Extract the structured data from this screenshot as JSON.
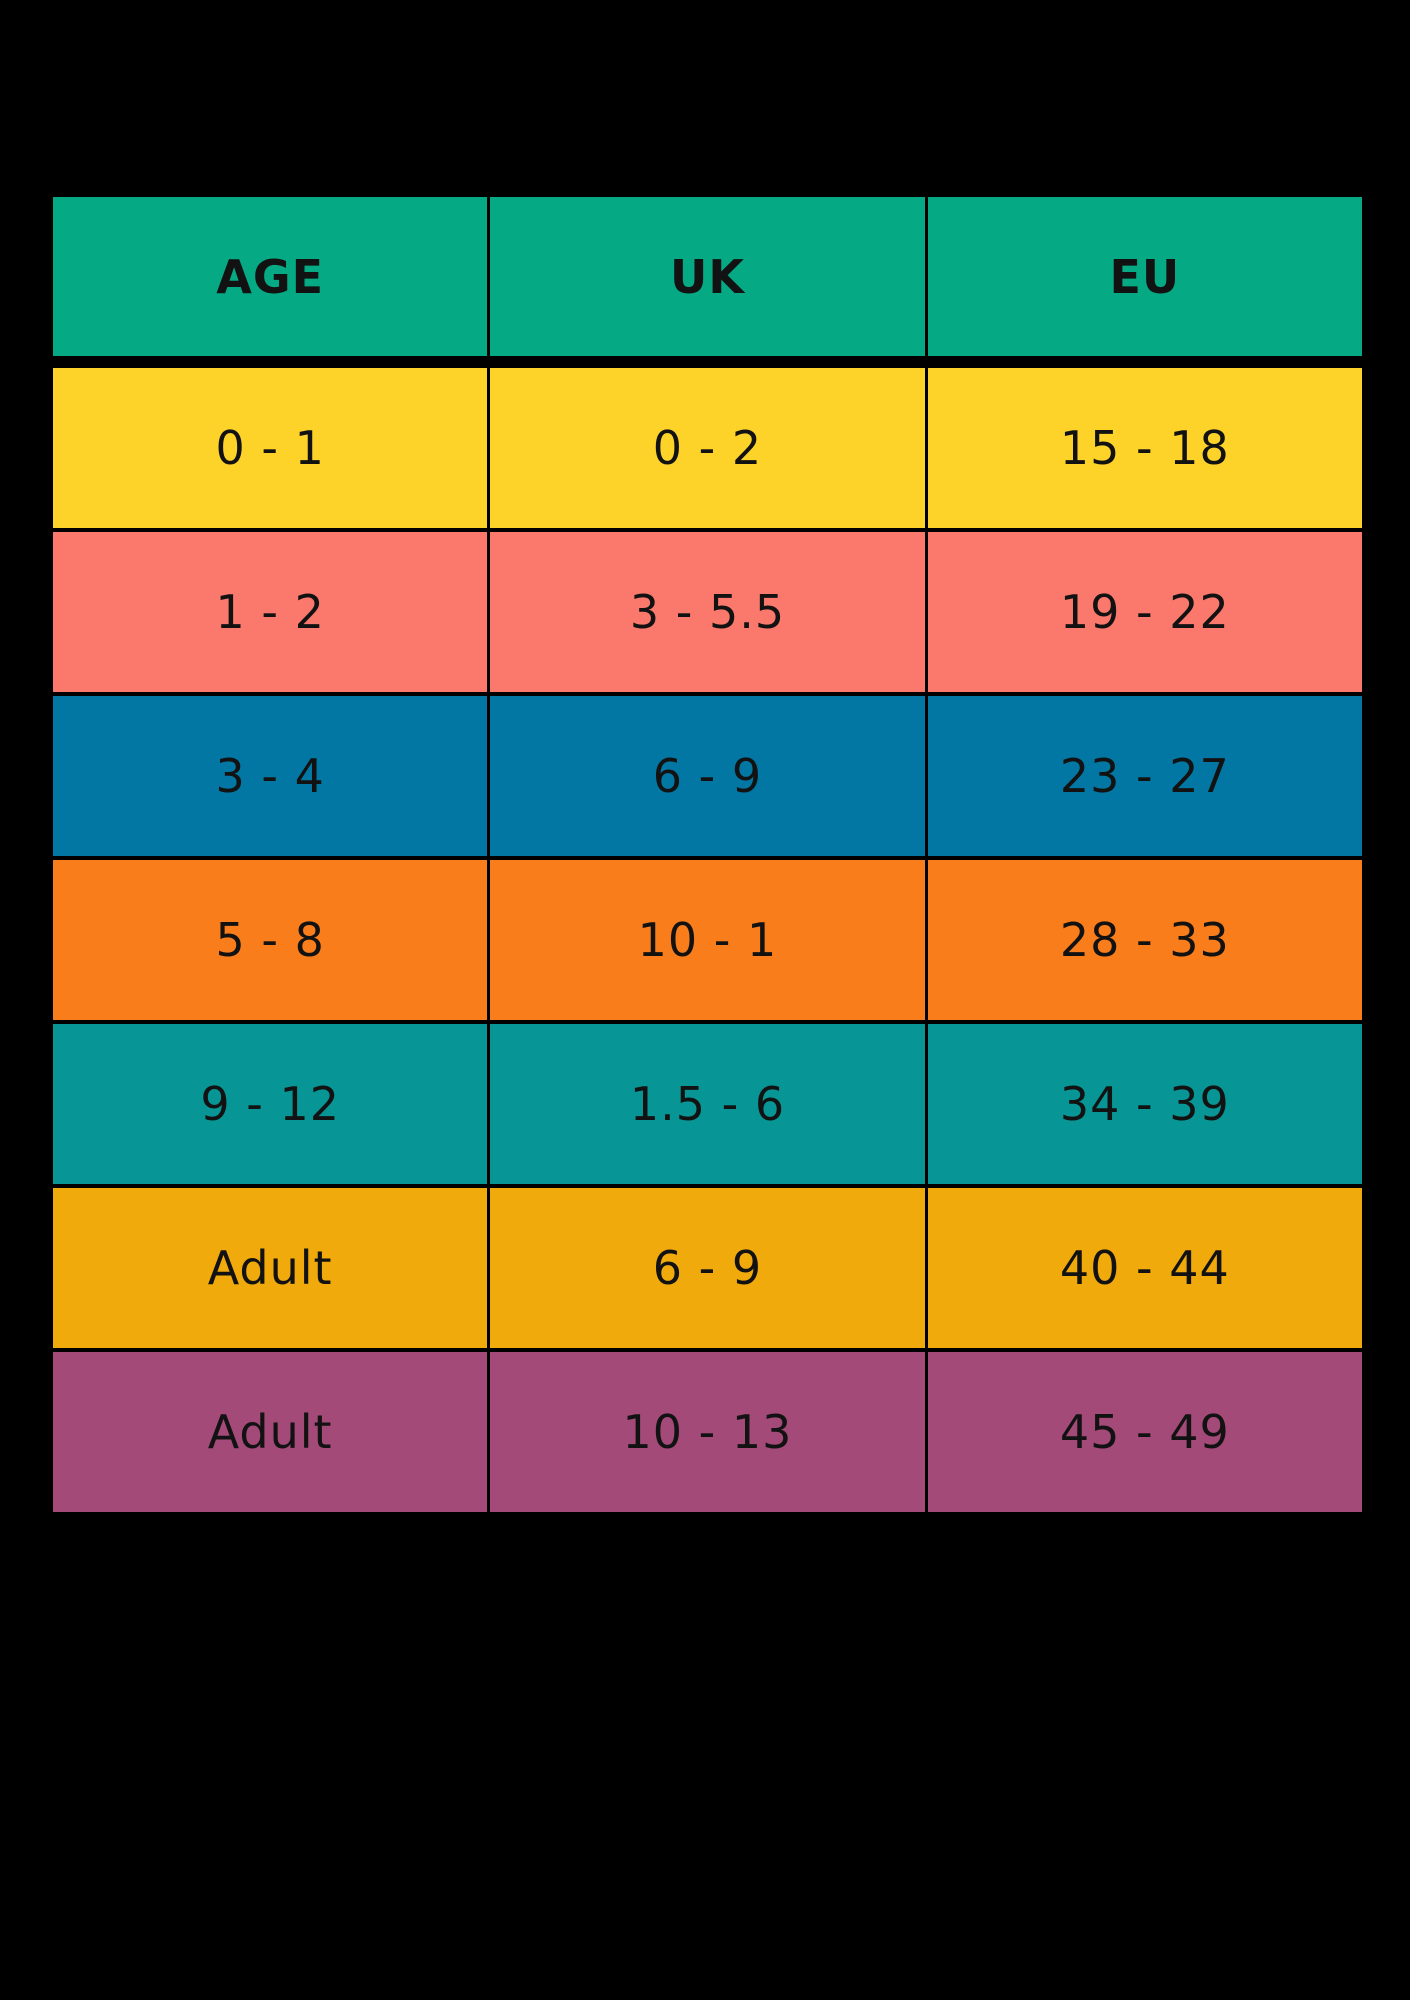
{
  "page": {
    "background": "#000000",
    "text_color": "#121212"
  },
  "table": {
    "header_color": "#05A983",
    "columns": [
      "AGE",
      "UK",
      "EU"
    ],
    "rows": [
      {
        "age": "0 - 1",
        "uk": "0 - 2",
        "eu": "15 - 18",
        "color": "#FDD32A"
      },
      {
        "age": "1 - 2",
        "uk": "3 - 5.5",
        "eu": "19 - 22",
        "color": "#FA796C"
      },
      {
        "age": "3 - 4",
        "uk": "6 - 9",
        "eu": "23 - 27",
        "color": "#0377A3"
      },
      {
        "age": "5 - 8",
        "uk": "10 - 1",
        "eu": "28 - 33",
        "color": "#FA7D1B"
      },
      {
        "age": "9 - 12",
        "uk": "1.5 - 6",
        "eu": "34 - 39",
        "color": "#079695"
      },
      {
        "age": "Adult",
        "uk": "6 - 9",
        "eu": "40 - 44",
        "color": "#F0AA0B"
      },
      {
        "age": "Adult",
        "uk": "10 - 13",
        "eu": "45 - 49",
        "color": "#A34A79"
      }
    ]
  },
  "chart_data": {
    "type": "table",
    "title": "",
    "columns": [
      "AGE",
      "UK",
      "EU"
    ],
    "rows": [
      [
        "0 - 1",
        "0 - 2",
        "15 - 18"
      ],
      [
        "1 - 2",
        "3 - 5.5",
        "19 - 22"
      ],
      [
        "3 - 4",
        "6 - 9",
        "23 - 27"
      ],
      [
        "5 - 8",
        "10 - 1",
        "28 - 33"
      ],
      [
        "9 - 12",
        "1.5 - 6",
        "34 - 39"
      ],
      [
        "Adult",
        "6 - 9",
        "40 - 44"
      ],
      [
        "Adult",
        "10 - 13",
        "45 - 49"
      ]
    ],
    "row_colors": [
      "#FDD32A",
      "#FA796C",
      "#0377A3",
      "#FA7D1B",
      "#079695",
      "#F0AA0B",
      "#A34A79"
    ],
    "header_color": "#05A983",
    "background": "#000000"
  }
}
